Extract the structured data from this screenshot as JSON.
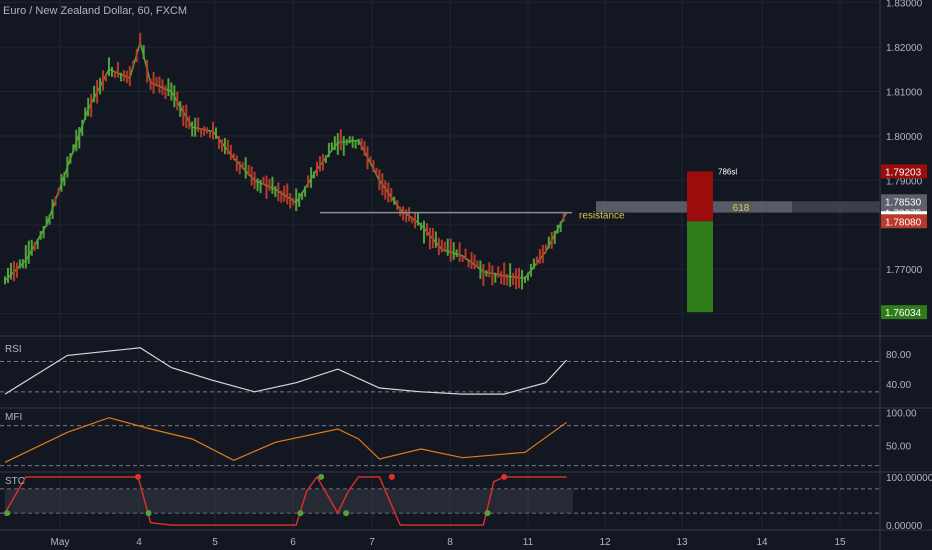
{
  "header": {
    "title": "Euro / New Zealand Dollar, 60, FXCM"
  },
  "colors": {
    "background": "#131722",
    "grid": "#1f2433",
    "up": "#53a33a",
    "down": "#b83a2b",
    "rsi_line": "#d8d8d8",
    "mfi_line": "#e07b1a",
    "text": "#b2b5be",
    "annotation": "#e3c84a",
    "stop_zone": "#9b0d0d",
    "target_zone": "#2e7d1a"
  },
  "chart_data": {
    "type": "candlestick",
    "symbol": "Euro / New Zealand Dollar, 60, FXCM",
    "x_tick_labels": [
      "May",
      "4",
      "5",
      "6",
      "7",
      "8",
      "11",
      "12",
      "13",
      "14",
      "15"
    ],
    "price_axis": {
      "ticks": [
        "1.83000",
        "1.82000",
        "1.81000",
        "1.80000",
        "1.79000",
        "1.77000",
        "1.76000"
      ],
      "ylim": [
        1.7552,
        1.8306
      ],
      "markers": [
        {
          "label": "1.79203",
          "value": 1.79203,
          "color": "#9b0d0d"
        },
        {
          "label": "1.78530",
          "value": 1.7853,
          "color": "#5d606b"
        },
        {
          "label": "1.78275",
          "value": 1.78275,
          "color": "#5d606b"
        },
        {
          "label": "1.78149",
          "value": 1.78149,
          "color": "#ffffff"
        },
        {
          "label": "1.78080",
          "value": 1.7808,
          "color": "#b83a2b"
        },
        {
          "label": "1.76034",
          "value": 1.76034,
          "color": "#2e7d1a"
        }
      ]
    },
    "price_path": [
      [
        0,
        1.7675
      ],
      [
        1,
        1.772
      ],
      [
        2,
        1.78
      ],
      [
        3,
        1.793
      ],
      [
        4,
        1.806
      ],
      [
        5,
        1.815
      ],
      [
        6,
        1.813
      ],
      [
        6.5,
        1.821
      ],
      [
        7,
        1.812
      ],
      [
        8,
        1.81
      ],
      [
        9,
        1.802
      ],
      [
        10,
        1.801
      ],
      [
        11,
        1.795
      ],
      [
        12,
        1.79
      ],
      [
        13,
        1.788
      ],
      [
        14,
        1.785
      ],
      [
        15,
        1.7925
      ],
      [
        16,
        1.7985
      ],
      [
        17,
        1.799
      ],
      [
        18,
        1.79
      ],
      [
        19,
        1.7835
      ],
      [
        20,
        1.78
      ],
      [
        21,
        1.7745
      ],
      [
        22,
        1.773
      ],
      [
        23,
        1.7695
      ],
      [
        24,
        1.7685
      ],
      [
        25,
        1.768
      ],
      [
        26,
        1.774
      ],
      [
        27,
        1.7828
      ]
    ],
    "resistance": {
      "label": "resistance",
      "value": 1.78275
    },
    "fib_zone": {
      "label": "618",
      "top": 1.7853,
      "bottom": 1.78275
    },
    "trade_box": {
      "label": "786sl",
      "stop": 1.79203,
      "entry": 1.7808,
      "target": 1.76034
    },
    "indicators": [
      {
        "name": "RSI",
        "ticks": [
          "80.00",
          "40.00"
        ],
        "ylim": [
          10,
          97
        ],
        "levels": [
          70,
          30
        ],
        "path": [
          [
            0,
            27
          ],
          [
            3,
            78
          ],
          [
            6.5,
            88
          ],
          [
            8,
            62
          ],
          [
            10,
            45
          ],
          [
            12,
            30
          ],
          [
            14,
            42
          ],
          [
            16,
            60
          ],
          [
            18,
            35
          ],
          [
            20,
            30
          ],
          [
            22,
            27
          ],
          [
            24,
            27
          ],
          [
            26,
            42
          ],
          [
            27,
            72
          ]
        ]
      },
      {
        "name": "MFI",
        "ticks": [
          "100.00",
          "50.00"
        ],
        "ylim": [
          12,
          105
        ],
        "levels": [
          80,
          20
        ],
        "path": [
          [
            0,
            25
          ],
          [
            3,
            70
          ],
          [
            5,
            92
          ],
          [
            7,
            75
          ],
          [
            9,
            60
          ],
          [
            11,
            28
          ],
          [
            13,
            55
          ],
          [
            16,
            75
          ],
          [
            17,
            60
          ],
          [
            18,
            30
          ],
          [
            20,
            45
          ],
          [
            22,
            32
          ],
          [
            25,
            40
          ],
          [
            27,
            85
          ]
        ]
      },
      {
        "name": "STC",
        "ticks": [
          "100.00000",
          "0.00000"
        ],
        "ylim": [
          -8,
          108
        ],
        "levels": [
          75,
          25
        ],
        "path": [
          [
            0,
            25
          ],
          [
            1,
            100
          ],
          [
            6.4,
            100
          ],
          [
            7,
            5
          ],
          [
            8,
            0
          ],
          [
            14,
            0
          ],
          [
            14.5,
            70
          ],
          [
            15,
            100
          ],
          [
            16,
            25
          ],
          [
            16.5,
            70
          ],
          [
            17,
            100
          ],
          [
            18,
            100
          ],
          [
            19,
            0
          ],
          [
            23,
            0
          ],
          [
            23.5,
            90
          ],
          [
            24,
            100
          ],
          [
            27,
            100
          ]
        ]
      }
    ]
  }
}
